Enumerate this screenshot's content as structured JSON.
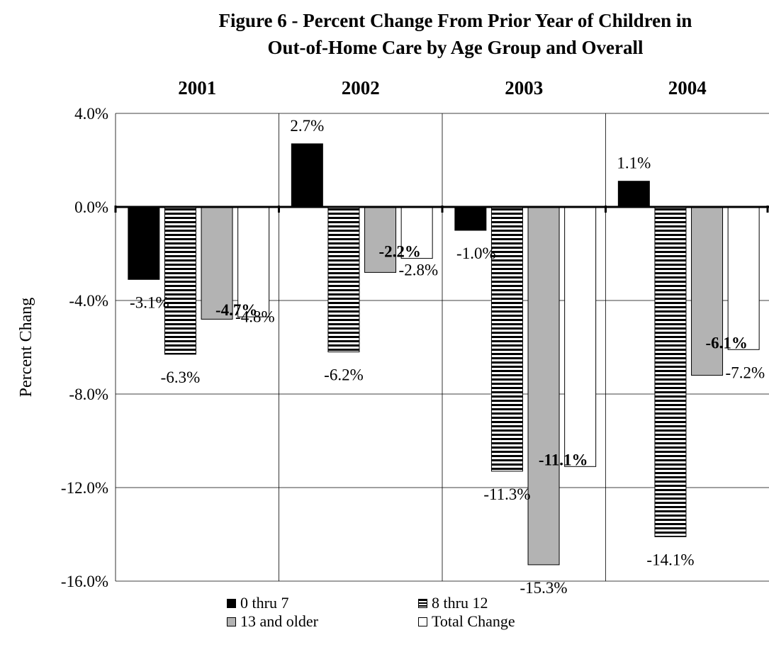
{
  "chart_data": {
    "type": "bar",
    "title_lines": [
      "Figure 6 - Percent Change From Prior Year of Children in",
      "Out-of-Home Care by Age Group and Overall"
    ],
    "categories": [
      "2001",
      "2002",
      "2003",
      "2004"
    ],
    "ylabel": "Percent Chang",
    "ylim": [
      -16.0,
      4.0
    ],
    "yticks": [
      4.0,
      0.0,
      -4.0,
      -8.0,
      -12.0,
      -16.0
    ],
    "ytick_labels": [
      "4.0%",
      "0.0%",
      "-4.0%",
      "-8.0%",
      "-12.0%",
      "-16.0%"
    ],
    "grid": true,
    "legend_position": "bottom",
    "series": [
      {
        "name": "0 thru 7",
        "values": [
          -3.1,
          2.7,
          -1.0,
          1.1
        ],
        "labels": [
          "-3.1%",
          "2.7%",
          "-1.0%",
          "1.1%"
        ],
        "fill": "solid-black",
        "label_bold": false
      },
      {
        "name": "8 thru 12",
        "values": [
          -6.3,
          -6.2,
          -11.3,
          -14.1
        ],
        "labels": [
          "-6.3%",
          "-6.2%",
          "-11.3%",
          "-14.1%"
        ],
        "fill": "horizontal-stripes",
        "label_bold": false
      },
      {
        "name": "13 and older",
        "values": [
          -4.8,
          -2.8,
          -15.3,
          -7.2
        ],
        "labels": [
          "-4.8%",
          "-2.8%",
          "-15.3%",
          "-7.2%"
        ],
        "fill": "gray",
        "label_bold": false
      },
      {
        "name": "Total Change",
        "values": [
          -4.7,
          -2.2,
          -11.1,
          -6.1
        ],
        "labels": [
          "-4.7%",
          "-2.2%",
          "-11.1%",
          "-6.1%"
        ],
        "fill": "white",
        "label_bold": true
      }
    ],
    "colors": {
      "solid": "#000000",
      "gray": "#b3b3b3",
      "white": "#ffffff",
      "grid": "#000000"
    }
  }
}
